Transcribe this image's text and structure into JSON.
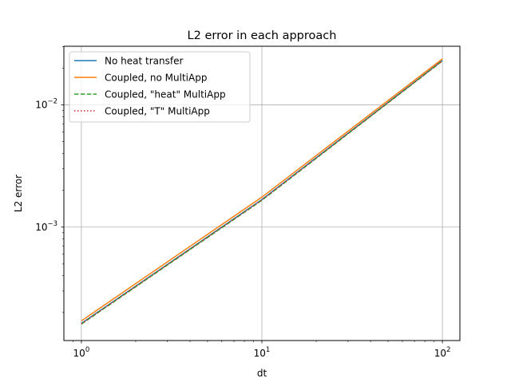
{
  "chart_data": {
    "type": "line",
    "title": "L2 error in each approach",
    "xlabel": "dt",
    "ylabel": "L2 error",
    "xscale": "log",
    "yscale": "log",
    "xlim": [
      0.8,
      125
    ],
    "ylim": [
      0.000118,
      0.0302
    ],
    "grid": true,
    "legend_position": "top-left",
    "xticks": [
      {
        "value": 1,
        "base": "10",
        "exp": "0"
      },
      {
        "value": 10,
        "base": "10",
        "exp": "1"
      },
      {
        "value": 100,
        "base": "10",
        "exp": "2"
      }
    ],
    "yticks": [
      {
        "value": 0.001,
        "base": "10",
        "exp": "−3"
      },
      {
        "value": 0.01,
        "base": "10",
        "exp": "−2"
      }
    ],
    "x": [
      1,
      10,
      100
    ],
    "series": [
      {
        "name": "No heat transfer",
        "color": "#1f77b4",
        "style": "solid",
        "values": [
          0.000163,
          0.00168,
          0.0231
        ]
      },
      {
        "name": "Coupled, no MultiApp",
        "color": "#ff7f0e",
        "style": "solid",
        "values": [
          0.000171,
          0.00176,
          0.0238
        ]
      },
      {
        "name": "Coupled, \"heat\" MultiApp",
        "color": "#2ca02c",
        "style": "dashed",
        "values": [
          0.000161,
          0.00166,
          0.0229
        ]
      },
      {
        "name": "Coupled, \"T\" MultiApp",
        "color": "#d62728",
        "style": "dotted",
        "values": [
          0.000162,
          0.00167,
          0.023
        ]
      }
    ]
  }
}
